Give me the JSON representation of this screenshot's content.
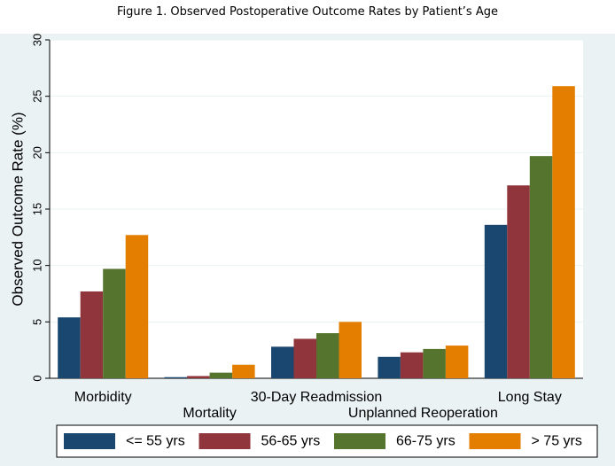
{
  "figure_title": "Figure 1. Observed Postoperative Outcome Rates by Patient’s Age",
  "colors": {
    "background_outer": "#eaf2f3",
    "plot_bg": "#ffffff",
    "grid": "#eaf2f3"
  },
  "chart_data": {
    "type": "bar",
    "title": "",
    "xlabel": "",
    "ylabel": "Observed Outcome Rate (%)",
    "ylim": [
      0,
      30
    ],
    "yticks": [
      0,
      5,
      10,
      15,
      20,
      25,
      30
    ],
    "grid": true,
    "legend_position": "bottom",
    "categories": [
      "Morbidity",
      "Mortality",
      "30-Day Readmission",
      "Unplanned Reoperation",
      "Long Stay"
    ],
    "series": [
      {
        "name": "<= 55 yrs",
        "color": "#1a476f",
        "values": [
          5.4,
          0.1,
          2.8,
          1.9,
          13.6
        ]
      },
      {
        "name": "56-65 yrs",
        "color": "#90353b",
        "values": [
          7.7,
          0.2,
          3.5,
          2.3,
          17.1
        ]
      },
      {
        "name": "66-75 yrs",
        "color": "#55752f",
        "values": [
          9.7,
          0.5,
          4.0,
          2.6,
          19.7
        ]
      },
      {
        "name": "> 75 yrs",
        "color": "#e37e00",
        "values": [
          12.7,
          1.2,
          5.0,
          2.9,
          25.9
        ]
      }
    ]
  }
}
